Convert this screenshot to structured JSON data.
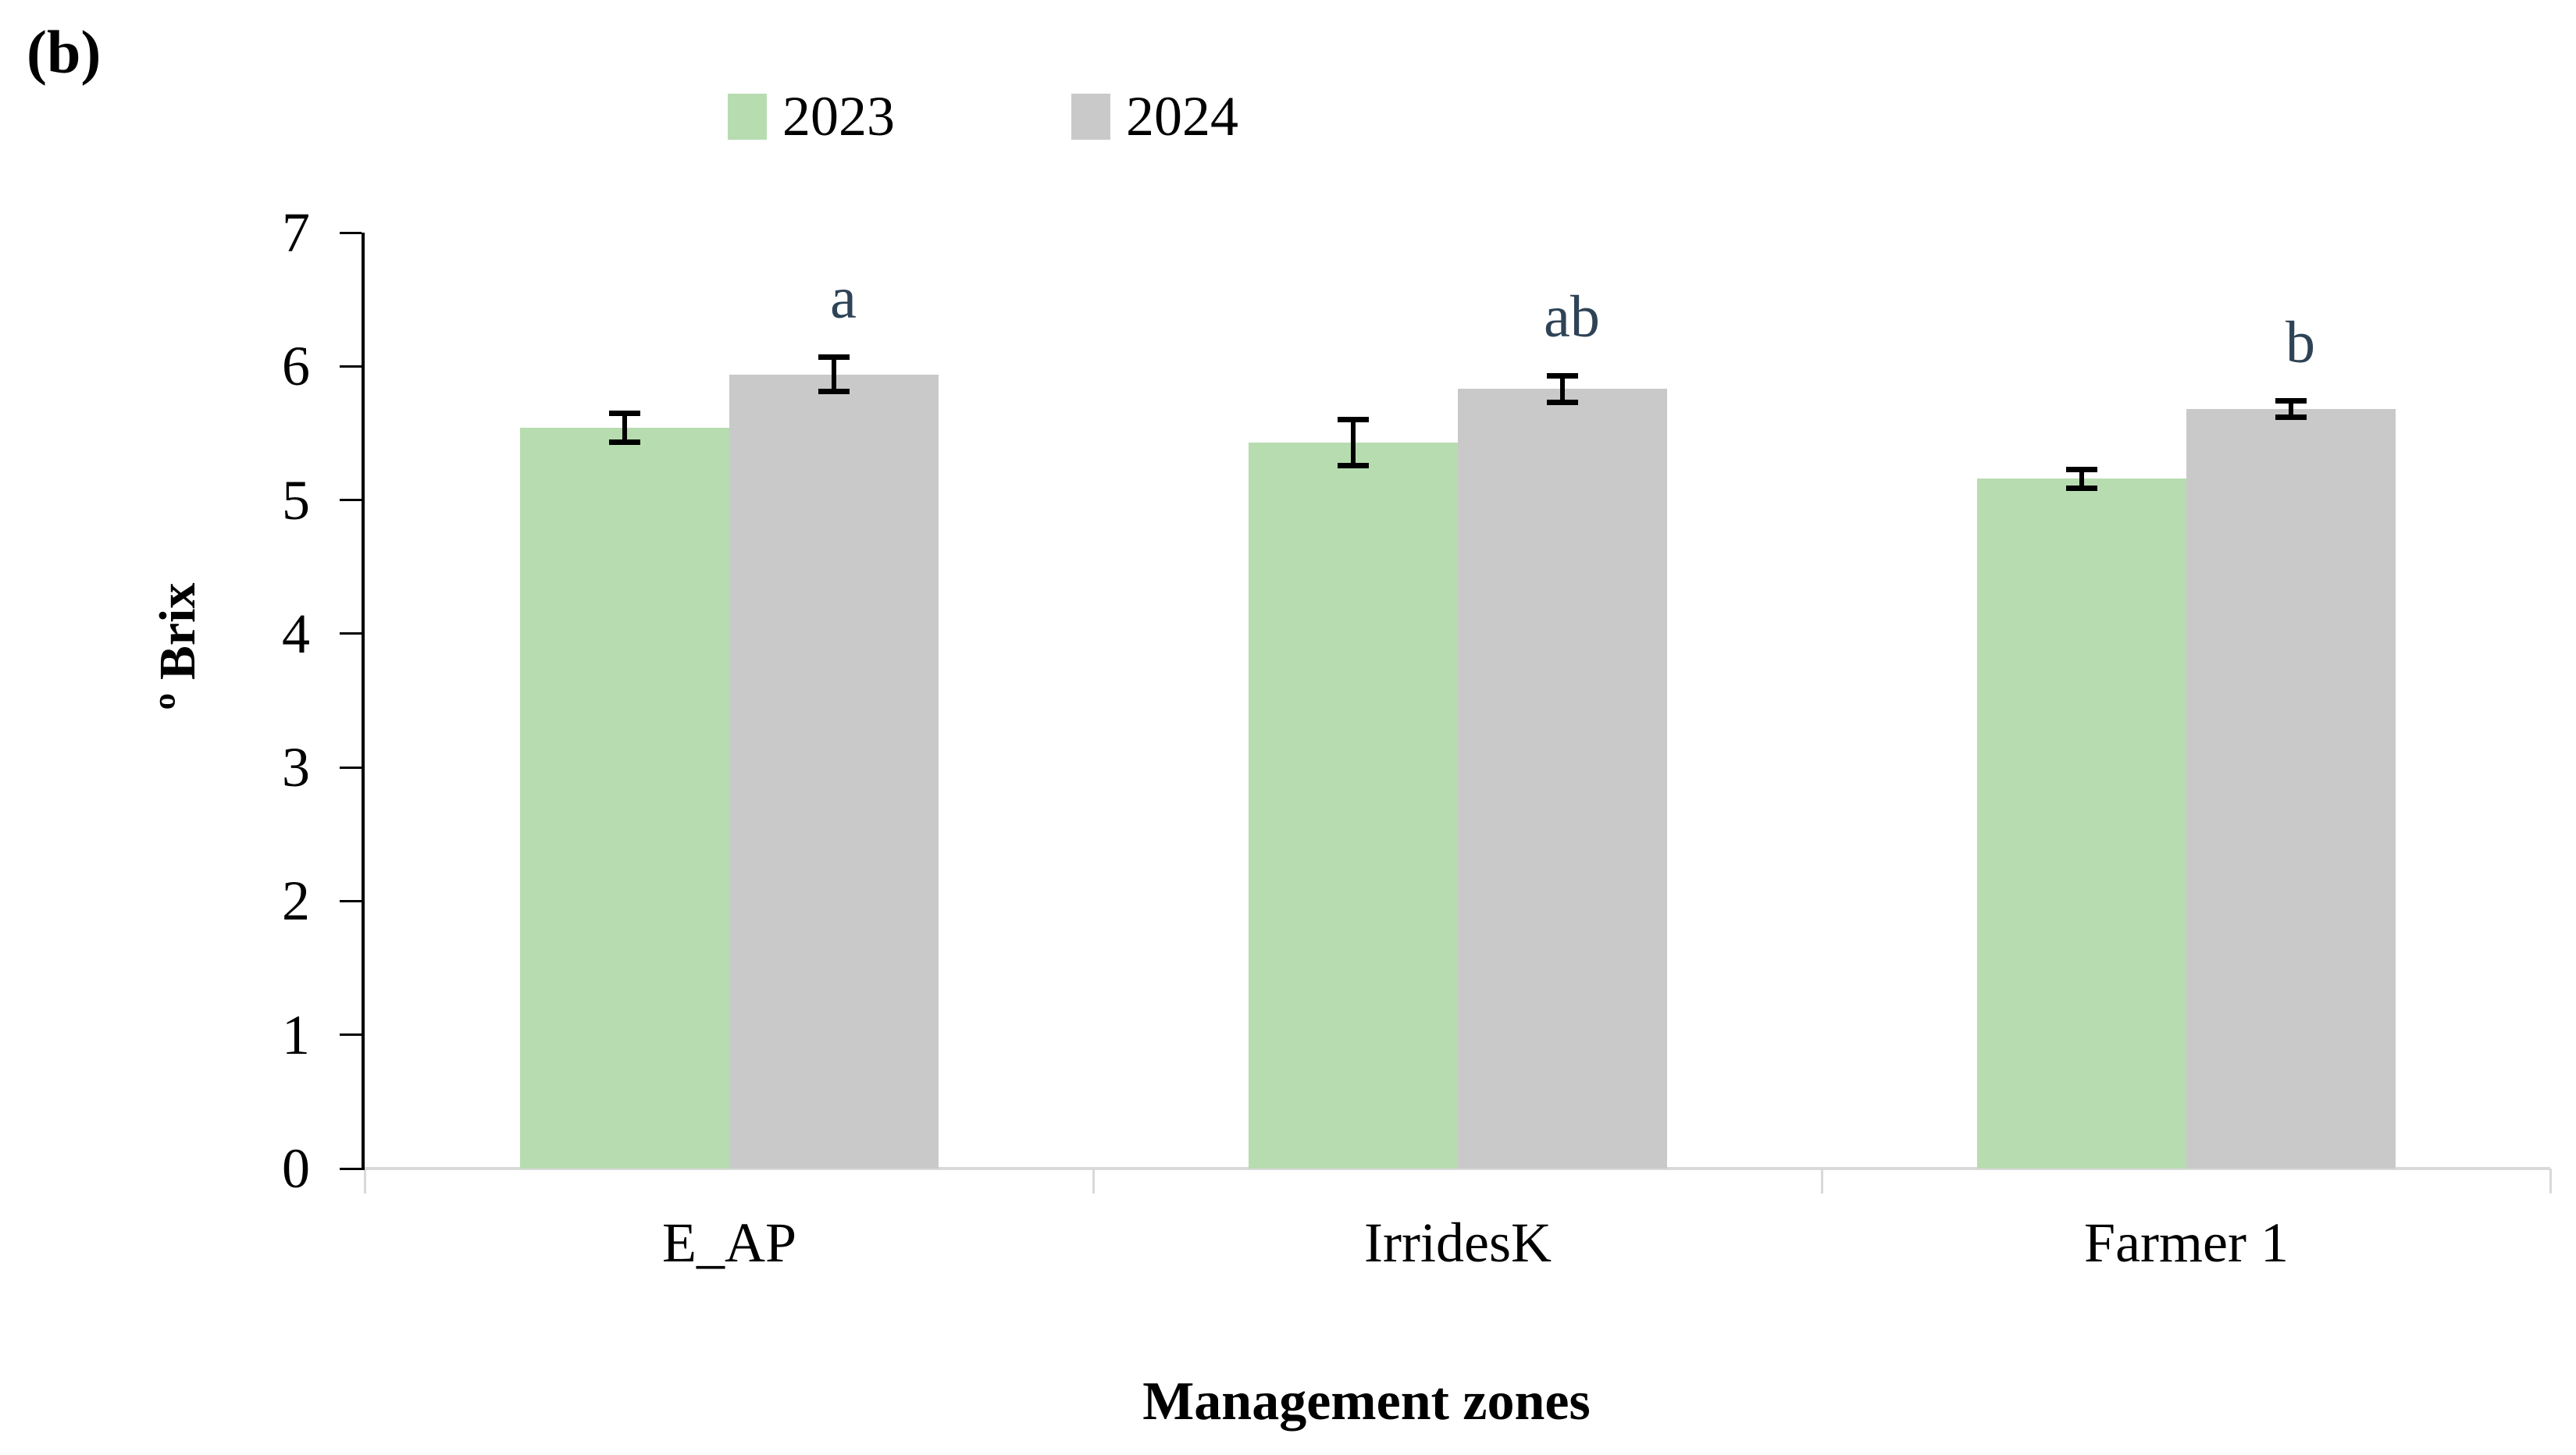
{
  "panel_label": "(b)",
  "legend": {
    "items": [
      {
        "label": "2023",
        "color": "#b7dcb0"
      },
      {
        "label": "2024",
        "color": "#c9c9c9"
      }
    ]
  },
  "chart_data": {
    "type": "bar",
    "title": "",
    "categories": [
      "E_AP",
      "IrridesK",
      "Farmer 1"
    ],
    "series": [
      {
        "name": "2023",
        "color": "#b7dcb0",
        "values": [
          5.54,
          5.43,
          5.16
        ],
        "errors": [
          0.11,
          0.17,
          0.07
        ]
      },
      {
        "name": "2024",
        "color": "#c9c9c9",
        "values": [
          5.94,
          5.83,
          5.68
        ],
        "errors": [
          0.13,
          0.1,
          0.06
        ]
      }
    ],
    "significance_letters": {
      "on_series": "2024",
      "labels": [
        "a",
        "ab",
        "b"
      ],
      "color": "#2e4356"
    },
    "ylabel": "º Brix",
    "xlabel": "Management zones",
    "ylim": [
      0,
      7
    ],
    "yticks": [
      0,
      1,
      2,
      3,
      4,
      5,
      6,
      7
    ],
    "grid": false,
    "legend_position": "top",
    "axis_color": "#000000",
    "baseline_color": "#d9d9d9",
    "error_bar_color": "#000000"
  }
}
